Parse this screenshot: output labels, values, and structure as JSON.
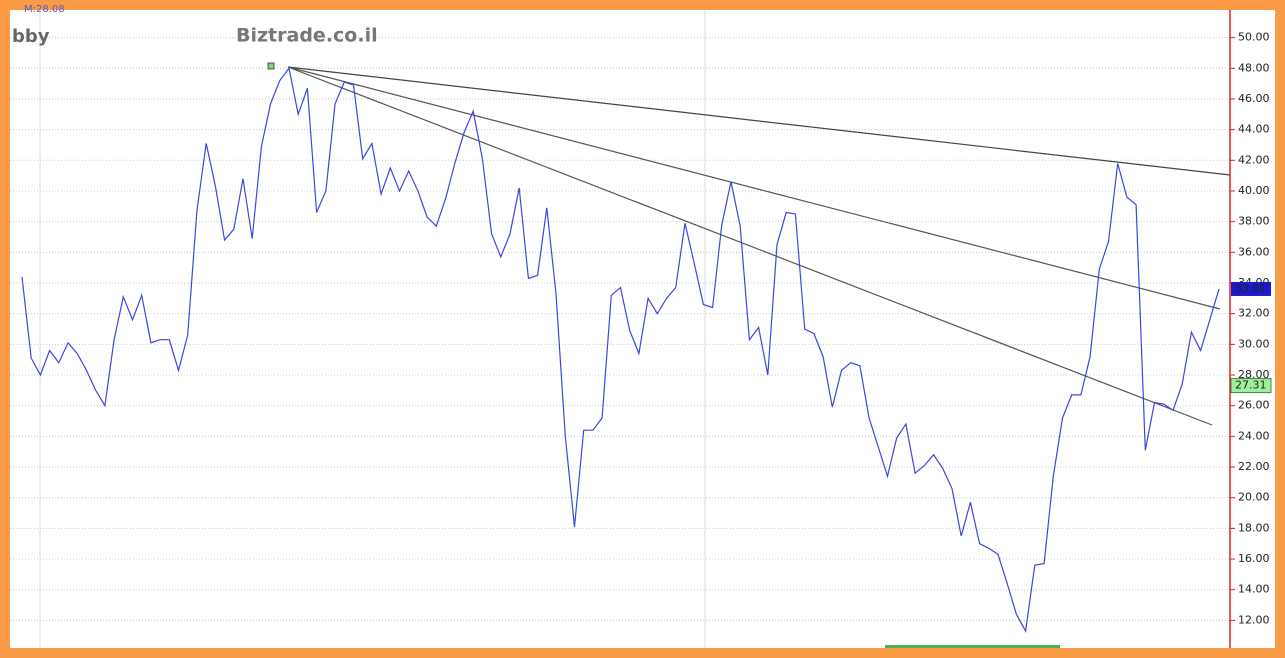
{
  "chart_data": {
    "type": "line",
    "header_label": "M:28.08",
    "symbol": "bby",
    "watermark": "Biztrade.co.il",
    "ylim": [
      10.2,
      51.8
    ],
    "yticks": [
      {
        "value": 12,
        "label": "12.00"
      },
      {
        "value": 14,
        "label": "14.00"
      },
      {
        "value": 16,
        "label": "16.00"
      },
      {
        "value": 18,
        "label": "18.00"
      },
      {
        "value": 20,
        "label": "20.00"
      },
      {
        "value": 22,
        "label": "22.00"
      },
      {
        "value": 24,
        "label": "24.00"
      },
      {
        "value": 26,
        "label": "26.00"
      },
      {
        "value": 28,
        "label": "28.00"
      },
      {
        "value": 30,
        "label": "30.00"
      },
      {
        "value": 32,
        "label": "32.00"
      },
      {
        "value": 34,
        "label": "34.00"
      },
      {
        "value": 36,
        "label": "36.00"
      },
      {
        "value": 38,
        "label": "38.00"
      },
      {
        "value": 40,
        "label": "40.00"
      },
      {
        "value": 42,
        "label": "42.00"
      },
      {
        "value": 44,
        "label": "44.00"
      },
      {
        "value": 46,
        "label": "46.00"
      },
      {
        "value": 48,
        "label": "48.00"
      },
      {
        "value": 50,
        "label": "50.00"
      }
    ],
    "grid": true,
    "series": [
      {
        "color": "#3c46e0",
        "values": [
          34.4,
          29.1,
          28.0,
          29.6,
          28.8,
          30.1,
          29.4,
          28.3,
          27.0,
          26.0,
          30.3,
          33.1,
          31.6,
          33.2,
          30.1,
          30.3,
          30.3,
          28.3,
          30.6,
          38.7,
          43.1,
          40.3,
          36.8,
          37.5,
          40.8,
          36.9,
          42.9,
          45.7,
          47.2,
          48.0,
          45.0,
          46.7,
          38.6,
          40.0,
          45.7,
          47.1,
          46.9,
          42.1,
          43.1,
          39.8,
          41.5,
          40.0,
          41.3,
          40.0,
          38.3,
          37.7,
          39.5,
          41.8,
          43.8,
          45.2,
          42.1,
          37.2,
          35.7,
          37.2,
          40.2,
          34.3,
          34.5,
          38.9,
          33.3,
          24.0,
          18.1,
          24.4,
          24.4,
          25.2,
          33.2,
          33.7,
          30.9,
          29.4,
          33.0,
          32.0,
          33.0,
          33.7,
          37.9,
          35.3,
          32.6,
          32.4,
          37.8,
          40.6,
          37.7,
          30.3,
          31.1,
          28.0,
          36.5,
          38.6,
          38.5,
          31.0,
          30.7,
          29.2,
          25.9,
          28.3,
          28.8,
          28.6,
          25.2,
          23.3,
          21.4,
          23.9,
          24.8,
          21.6,
          22.1,
          22.8,
          21.9,
          20.6,
          17.5,
          19.7,
          17.0,
          16.7,
          16.3,
          14.4,
          12.4,
          11.3,
          15.6,
          15.7,
          21.4,
          25.2,
          26.7,
          26.7,
          29.2,
          34.9,
          36.7,
          41.8,
          39.6,
          39.1,
          23.1,
          26.2,
          26.1,
          25.7,
          27.4,
          30.8,
          29.6,
          31.6,
          33.6
        ]
      }
    ],
    "price_tags": [
      {
        "value": 33.61,
        "color": "#1a1acc"
      },
      {
        "value": 27.31,
        "color": "#9ef09e"
      }
    ]
  }
}
